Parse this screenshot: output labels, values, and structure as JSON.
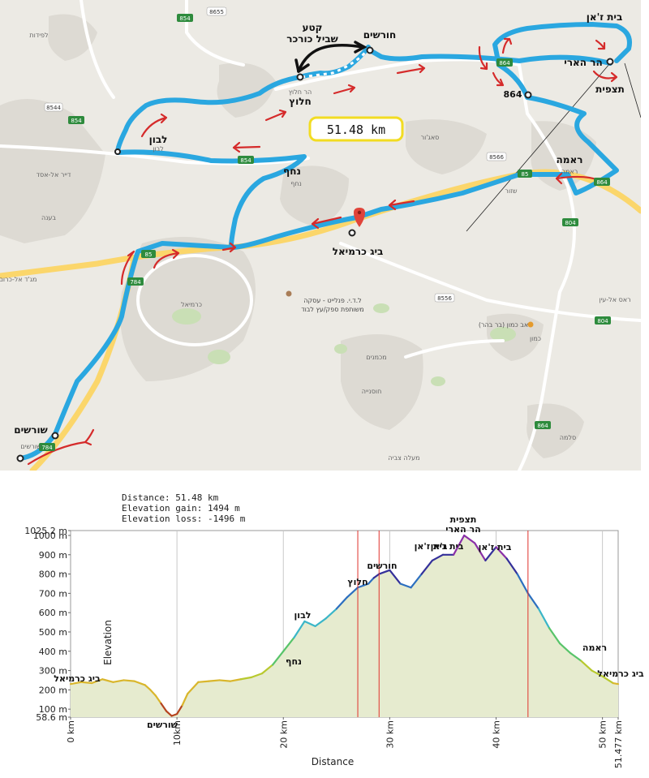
{
  "map": {
    "distance_badge": "51.48 km",
    "segment_label_line1": "קטע",
    "segment_label_line2": "שביל כורכר",
    "places": {
      "horshim": "חורשים",
      "halutz": "חלוץ",
      "halutz_small": "הר חלוץ",
      "lavon": "לבון",
      "lavon_small": "לבון",
      "nahaf": "נחף",
      "nahaf_small": "נחף",
      "big_karmiel": "ביג כרמיאל",
      "shorashim": "שורשים",
      "shorashim_small": "שורשים",
      "beit_jann": "בית ז'אן",
      "har_ari": "הר הארי",
      "tzfit": "תצפית",
      "rameh": "ראמה",
      "rameh_small": "ראמה",
      "karmiel": "כרמיאל",
      "sajur": "סאג'ור",
      "shezor": "שזור",
      "lapidot": "לפידות",
      "bina": "בענה",
      "deir_al_asad": "דייר אל-אסד",
      "majd_al_krum": "מג'ד אל-כרום",
      "ras_al_ein": "ראס אל-עין",
      "kamon": "כמון",
      "pub_kamon": "פאב כמון (בר בהר)",
      "michmanim": "מכמנים",
      "hussniya": "חוסנייה",
      "salama": "סלמה",
      "maale_tzviya": "מעלה צביה",
      "industry_line1": "ל.ד.י. פנלייט - עסקה",
      "industry_line2": "משותפת ספק/עץ לבוד"
    },
    "road_numbers": [
      "854",
      "8655",
      "8544",
      "854",
      "864",
      "864",
      "8566",
      "85",
      "85",
      "784",
      "784",
      "804",
      "804",
      "8556",
      "864",
      "854"
    ],
    "road_colors": {
      "major": "#fbd66b",
      "regional": "#ffffff",
      "badge": "#2e8b3d"
    },
    "route_color": "#2aa7e0",
    "arrow_color": "#d52b2b",
    "badge_border": "#f2dc22"
  },
  "profile": {
    "stats": {
      "distance": "Distance: 51.48 km",
      "gain": "Elevation gain: 1494 m",
      "loss": "Elevation loss: -1496 m"
    },
    "y_axis_title": "Elevation",
    "x_axis_title": "Distance",
    "y_ticks": [
      "1025.2 m",
      "1000 m",
      "900 m",
      "800 m",
      "700 m",
      "600 m",
      "500 m",
      "400 m",
      "300 m",
      "200 m",
      "100 m",
      "58.6 m"
    ],
    "x_ticks": [
      "0 km",
      "10km",
      "20 km",
      "30 km",
      "40 km",
      "50 km",
      "51.477 km"
    ],
    "annotations": {
      "big_karmiel_start": "ביג כרמיאל",
      "shorashim": "שורשים",
      "nahaf": "נחף",
      "lavon": "לבון",
      "halutz": "חלוץ",
      "horshim": "חורשים",
      "beit_jann_1": "בית ז'אן",
      "beit_jann_2": "בית ז'אן",
      "beit_jann_3": "בית ז'אן",
      "tzfit": "תצפית",
      "har_ari": "הר הארי",
      "rameh": "ראמה",
      "big_karmiel_end": "ביג כרמיאל"
    }
  },
  "chart_data": {
    "type": "area",
    "title": "",
    "xlabel": "Distance",
    "ylabel": "Elevation",
    "xlim": [
      0,
      51.477
    ],
    "ylim": [
      58.6,
      1025.2
    ],
    "x_unit": "km",
    "y_unit": "m",
    "red_marker_lines_km": [
      27,
      29,
      43
    ],
    "series": [
      {
        "x": [
          0,
          1,
          2,
          3,
          4,
          5,
          6,
          7,
          7.5,
          8,
          8.5,
          9,
          9.5,
          10,
          10.5,
          11,
          12,
          13,
          14,
          15,
          16,
          17,
          18,
          19,
          20,
          21,
          22,
          23,
          24,
          25,
          26,
          27,
          28,
          28.5,
          29,
          30,
          31,
          32,
          33,
          34,
          35,
          36,
          37,
          38,
          39,
          40,
          41,
          42,
          43,
          44,
          45,
          46,
          47,
          48,
          49,
          50,
          51,
          51.477
        ],
        "y": [
          230,
          240,
          235,
          255,
          240,
          250,
          245,
          225,
          200,
          170,
          130,
          90,
          65,
          75,
          120,
          180,
          240,
          245,
          250,
          245,
          255,
          265,
          285,
          330,
          400,
          470,
          555,
          530,
          570,
          620,
          680,
          730,
          750,
          780,
          800,
          820,
          750,
          730,
          800,
          870,
          900,
          900,
          1000,
          960,
          870,
          940,
          880,
          800,
          700,
          620,
          520,
          440,
          390,
          350,
          300,
          270,
          235,
          230
        ]
      }
    ]
  }
}
